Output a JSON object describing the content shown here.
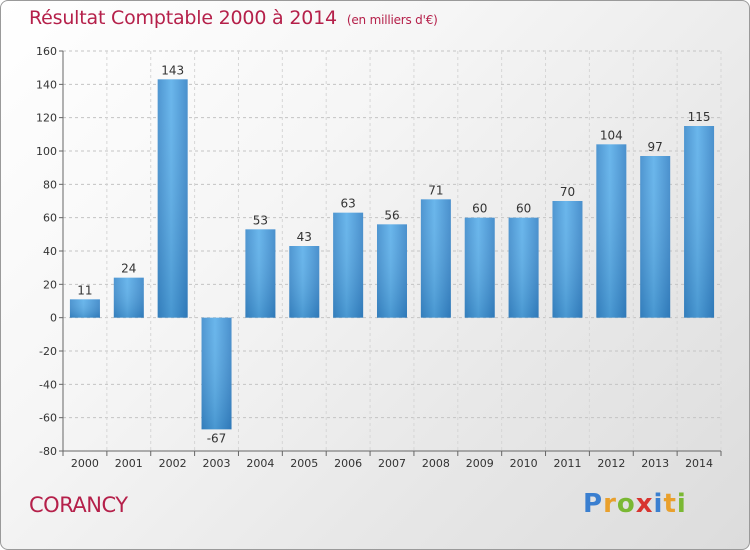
{
  "header": {
    "title": "Résultat Comptable 2000 à 2014",
    "unit": "(en milliers d'€)"
  },
  "chart_data": {
    "type": "bar",
    "title": "Résultat Comptable 2000 à 2014",
    "subtitle": "(en milliers d'€)",
    "categories": [
      "2000",
      "2001",
      "2002",
      "2003",
      "2004",
      "2005",
      "2006",
      "2007",
      "2008",
      "2009",
      "2010",
      "2011",
      "2012",
      "2013",
      "2014"
    ],
    "values": [
      11,
      24,
      143,
      -67,
      53,
      43,
      63,
      56,
      71,
      60,
      60,
      70,
      104,
      97,
      115
    ],
    "ylim": [
      -80,
      160
    ],
    "yticks": [
      -80,
      -60,
      -40,
      -20,
      0,
      20,
      40,
      60,
      80,
      100,
      120,
      140,
      160
    ],
    "grid": "horizontal dashed",
    "bar_color": "#4f9fde"
  },
  "footer": {
    "commune": "CORANCY",
    "logo": {
      "letters": [
        "P",
        "r",
        "o",
        "x",
        "i",
        "t",
        "i"
      ],
      "colors": [
        "#3a7fd0",
        "#e9a02c",
        "#7ab833",
        "#d8342f",
        "#3a7fd0",
        "#e9a02c",
        "#7ab833"
      ]
    }
  }
}
